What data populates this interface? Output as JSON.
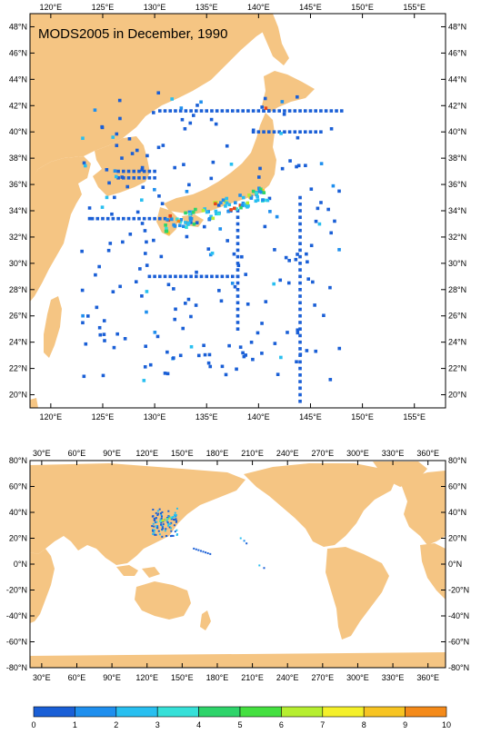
{
  "title": "MODS2005 in December, 1990",
  "colors": {
    "land": "#f5c583",
    "ocean": "#ffffff",
    "frame": "#000000"
  },
  "top_map": {
    "lon_ticks": [
      "120°E",
      "125°E",
      "130°E",
      "135°E",
      "140°E",
      "145°E",
      "150°E",
      "155°E"
    ],
    "lat_ticks": [
      "48°N",
      "46°N",
      "44°N",
      "42°N",
      "40°N",
      "38°N",
      "36°N",
      "34°N",
      "32°N",
      "30°N",
      "28°N",
      "26°N",
      "24°N",
      "22°N",
      "20°N"
    ]
  },
  "bottom_map": {
    "lon_ticks": [
      "30°E",
      "60°E",
      "90°E",
      "120°E",
      "150°E",
      "180°E",
      "210°E",
      "240°E",
      "270°E",
      "300°E",
      "330°E",
      "360°E"
    ],
    "lat_ticks": [
      "80°N",
      "60°N",
      "40°N",
      "20°N",
      "0°N",
      "-20°N",
      "-40°N",
      "-60°N",
      "-80°N"
    ]
  },
  "colorbar": {
    "labels": [
      "0",
      "1",
      "2",
      "3",
      "4",
      "5",
      "6",
      "7",
      "8",
      "9",
      "10"
    ],
    "colors": [
      "#1a5fd6",
      "#1f8fee",
      "#28bff0",
      "#36e0d8",
      "#2ed46a",
      "#44e040",
      "#b6ee30",
      "#f4f02a",
      "#f7c422",
      "#f48a1a",
      "#e8461a"
    ]
  }
}
